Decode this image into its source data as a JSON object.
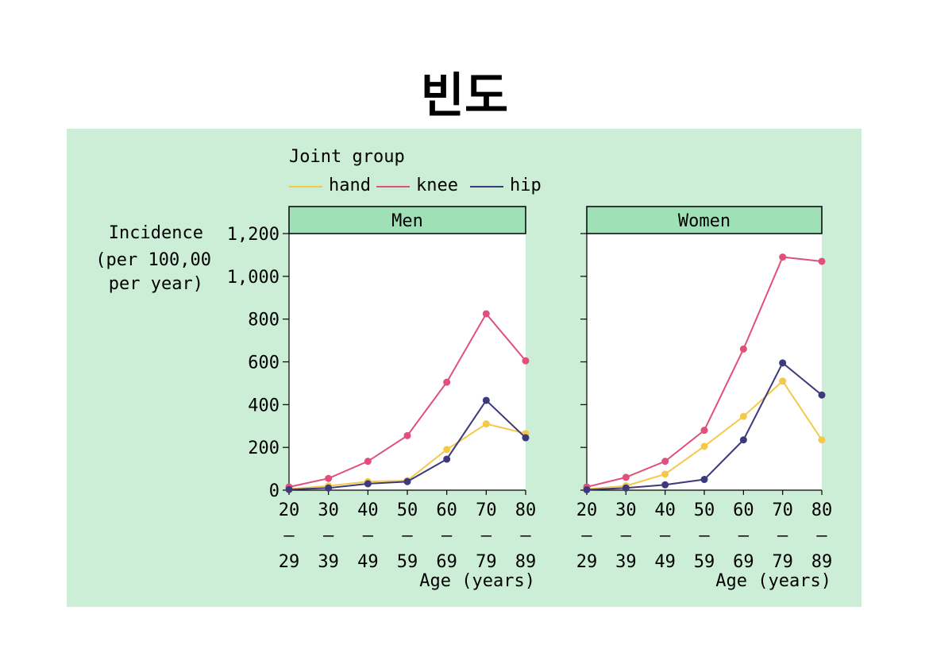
{
  "page_title": "빈도",
  "legend": {
    "title": "Joint group",
    "entries": [
      {
        "label": "hand",
        "color": "#f4c94a"
      },
      {
        "label": "knee",
        "color": "#e0507a"
      },
      {
        "label": "hip",
        "color": "#3c3a7c"
      }
    ]
  },
  "y_axis_label": [
    "Incidence",
    "(per 100,00",
    "per year)"
  ],
  "x_axis_label": "Age (years)",
  "chart_data": [
    {
      "type": "line",
      "title": "Men",
      "x": [
        "20-29",
        "30-39",
        "40-49",
        "50-59",
        "60-69",
        "70-79",
        "80-89"
      ],
      "x_tick_top": [
        "20",
        "30",
        "40",
        "50",
        "60",
        "70",
        "80"
      ],
      "x_tick_bottom": [
        "29",
        "39",
        "49",
        "59",
        "69",
        "79",
        "89"
      ],
      "y_ticks": [
        "0",
        "200",
        "400",
        "600",
        "800",
        "1,000",
        "1,200"
      ],
      "ylim": [
        0,
        1200
      ],
      "xlabel": "Age (years)",
      "ylabel": "Incidence (per 100,00 per year)",
      "series": [
        {
          "name": "hand",
          "color": "#f4c94a",
          "values": [
            5,
            20,
            40,
            45,
            190,
            310,
            265
          ]
        },
        {
          "name": "knee",
          "color": "#e0507a",
          "values": [
            15,
            55,
            135,
            255,
            505,
            825,
            605
          ]
        },
        {
          "name": "hip",
          "color": "#3c3a7c",
          "values": [
            3,
            10,
            30,
            40,
            145,
            420,
            245
          ]
        }
      ]
    },
    {
      "type": "line",
      "title": "Women",
      "x": [
        "20-29",
        "30-39",
        "40-49",
        "50-59",
        "60-69",
        "70-79",
        "80-89"
      ],
      "x_tick_top": [
        "20",
        "30",
        "40",
        "50",
        "60",
        "70",
        "80"
      ],
      "x_tick_bottom": [
        "29",
        "39",
        "49",
        "59",
        "69",
        "79",
        "89"
      ],
      "y_ticks": [
        "0",
        "200",
        "400",
        "600",
        "800",
        "1,000",
        "1,200"
      ],
      "ylim": [
        0,
        1200
      ],
      "xlabel": "Age (years)",
      "series": [
        {
          "name": "hand",
          "color": "#f4c94a",
          "values": [
            5,
            20,
            75,
            205,
            345,
            510,
            235
          ]
        },
        {
          "name": "knee",
          "color": "#e0507a",
          "values": [
            15,
            60,
            135,
            280,
            660,
            1090,
            1070
          ]
        },
        {
          "name": "hip",
          "color": "#3c3a7c",
          "values": [
            2,
            10,
            25,
            50,
            235,
            595,
            445
          ]
        }
      ]
    }
  ]
}
